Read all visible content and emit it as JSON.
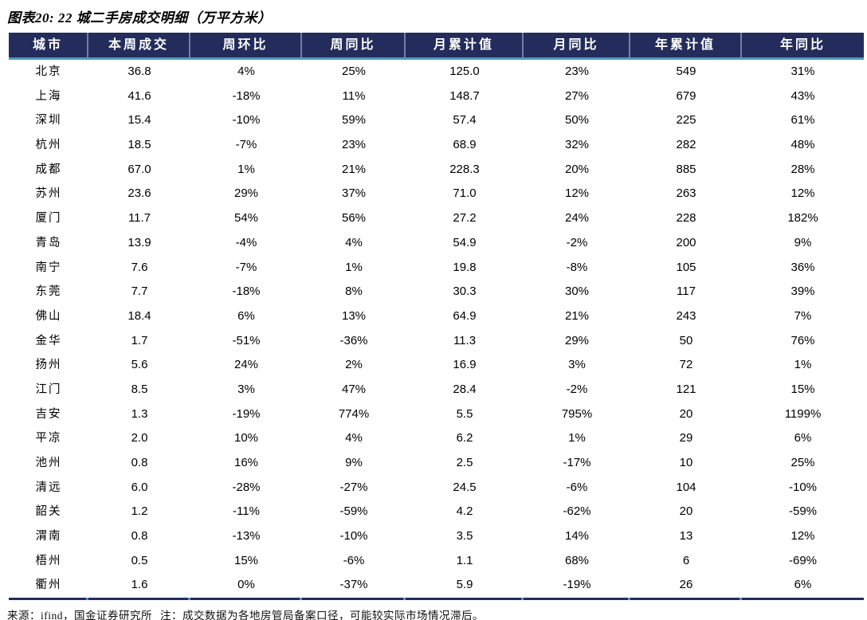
{
  "title": "图表20: 22 城二手房成交明细（万平方米）",
  "footer": {
    "source": "来源：ifind，国金证券研究所",
    "note": "注：成交数据为各地房管局备案口径，可能较实际市场情况滞后。"
  },
  "colors": {
    "header_bg": "#232C5A",
    "header_text": "#FFFFFF",
    "accent_line": "#4A9CBE",
    "header_separator": "#6F7FA8",
    "body_text": "#000000"
  },
  "chart_data": {
    "type": "table",
    "title": "图表20: 22 城二手房成交明细（万平方米）",
    "columns": [
      "城市",
      "本周成交",
      "周环比",
      "周同比",
      "月累计值",
      "月同比",
      "年累计值",
      "年同比"
    ],
    "rows": [
      [
        "北京",
        "36.8",
        "4%",
        "25%",
        "125.0",
        "23%",
        "549",
        "31%"
      ],
      [
        "上海",
        "41.6",
        "-18%",
        "11%",
        "148.7",
        "27%",
        "679",
        "43%"
      ],
      [
        "深圳",
        "15.4",
        "-10%",
        "59%",
        "57.4",
        "50%",
        "225",
        "61%"
      ],
      [
        "杭州",
        "18.5",
        "-7%",
        "23%",
        "68.9",
        "32%",
        "282",
        "48%"
      ],
      [
        "成都",
        "67.0",
        "1%",
        "21%",
        "228.3",
        "20%",
        "885",
        "28%"
      ],
      [
        "苏州",
        "23.6",
        "29%",
        "37%",
        "71.0",
        "12%",
        "263",
        "12%"
      ],
      [
        "厦门",
        "11.7",
        "54%",
        "56%",
        "27.2",
        "24%",
        "228",
        "182%"
      ],
      [
        "青岛",
        "13.9",
        "-4%",
        "4%",
        "54.9",
        "-2%",
        "200",
        "9%"
      ],
      [
        "南宁",
        "7.6",
        "-7%",
        "1%",
        "19.8",
        "-8%",
        "105",
        "36%"
      ],
      [
        "东莞",
        "7.7",
        "-18%",
        "8%",
        "30.3",
        "30%",
        "117",
        "39%"
      ],
      [
        "佛山",
        "18.4",
        "6%",
        "13%",
        "64.9",
        "21%",
        "243",
        "7%"
      ],
      [
        "金华",
        "1.7",
        "-51%",
        "-36%",
        "11.3",
        "29%",
        "50",
        "76%"
      ],
      [
        "扬州",
        "5.6",
        "24%",
        "2%",
        "16.9",
        "3%",
        "72",
        "1%"
      ],
      [
        "江门",
        "8.5",
        "3%",
        "47%",
        "28.4",
        "-2%",
        "121",
        "15%"
      ],
      [
        "吉安",
        "1.3",
        "-19%",
        "774%",
        "5.5",
        "795%",
        "20",
        "1199%"
      ],
      [
        "平凉",
        "2.0",
        "10%",
        "4%",
        "6.2",
        "1%",
        "29",
        "6%"
      ],
      [
        "池州",
        "0.8",
        "16%",
        "9%",
        "2.5",
        "-17%",
        "10",
        "25%"
      ],
      [
        "清远",
        "6.0",
        "-28%",
        "-27%",
        "24.5",
        "-6%",
        "104",
        "-10%"
      ],
      [
        "韶关",
        "1.2",
        "-11%",
        "-59%",
        "4.2",
        "-62%",
        "20",
        "-59%"
      ],
      [
        "渭南",
        "0.8",
        "-13%",
        "-10%",
        "3.5",
        "14%",
        "13",
        "12%"
      ],
      [
        "梧州",
        "0.5",
        "15%",
        "-6%",
        "1.1",
        "68%",
        "6",
        "-69%"
      ],
      [
        "衢州",
        "1.6",
        "0%",
        "-37%",
        "5.9",
        "-19%",
        "26",
        "6%"
      ]
    ]
  }
}
